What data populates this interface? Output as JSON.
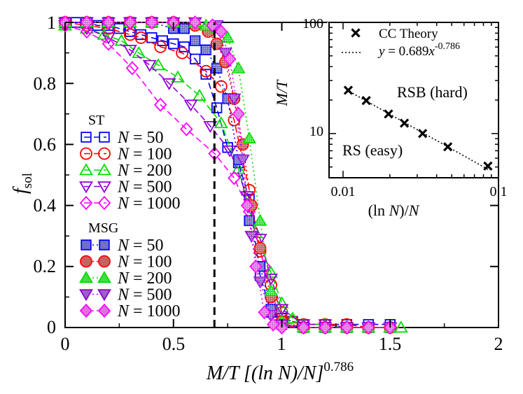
{
  "colors": {
    "N50": "#0000ff",
    "N100": "#ff0000",
    "N200": "#00dd00",
    "N500": "#9400d3",
    "N1000": "#ff00ff",
    "N50_msg_fill": "#7070c8",
    "N100_msg_fill": "#c86262",
    "N200_msg_fill": "#44dd44",
    "N500_msg_fill": "#9a60c8",
    "N1000_msg_fill": "#e070e0",
    "axis": "#000000",
    "threshold": "#000000"
  },
  "chart_data": [
    {
      "type": "line",
      "title": "",
      "xlabel_parts": {
        "base": "M/T [(ln N)/N]",
        "sup": "0.786"
      },
      "ylabel_parts": {
        "base": "f",
        "sub": "sol"
      },
      "xlim": [
        0,
        2
      ],
      "ylim": [
        0,
        1
      ],
      "x_ticks": [
        "0",
        "0.5",
        "1",
        "1.5",
        "2"
      ],
      "y_ticks": [
        "0",
        "0.2",
        "0.4",
        "0.6",
        "0.8",
        "1"
      ],
      "threshold_x": 0.689,
      "legend": {
        "position": "left",
        "groups": [
          {
            "title": "ST",
            "entries": [
              {
                "key": "N50",
                "label": "N = 50",
                "marker": "square",
                "filled": false
              },
              {
                "key": "N100",
                "label": "N = 100",
                "marker": "circle",
                "filled": false
              },
              {
                "key": "N200",
                "label": "N = 200",
                "marker": "triangle-up",
                "filled": false
              },
              {
                "key": "N500",
                "label": "N = 500",
                "marker": "triangle-down",
                "filled": false
              },
              {
                "key": "N1000",
                "label": "N = 1000",
                "marker": "diamond",
                "filled": false
              }
            ]
          },
          {
            "title": "MSG",
            "entries": [
              {
                "key": "N50",
                "label": "N = 50",
                "marker": "square",
                "filled": true
              },
              {
                "key": "N100",
                "label": "N = 100",
                "marker": "circle",
                "filled": true
              },
              {
                "key": "N200",
                "label": "N = 200",
                "marker": "triangle-up",
                "filled": true
              },
              {
                "key": "N500",
                "label": "N = 500",
                "marker": "triangle-down",
                "filled": true
              },
              {
                "key": "N1000",
                "label": "N = 1000",
                "marker": "diamond",
                "filled": true
              }
            ]
          }
        ]
      },
      "series": [
        {
          "name": "ST N = 50",
          "method": "ST",
          "key": "N50",
          "marker": "square",
          "filled": false,
          "dash": "9,5",
          "x": [
            0.0,
            0.05,
            0.1,
            0.15,
            0.2,
            0.25,
            0.3,
            0.35,
            0.4,
            0.45,
            0.5,
            0.55,
            0.6,
            0.65,
            0.7,
            0.75,
            0.8,
            0.85,
            0.9,
            0.95,
            1.0,
            1.05,
            1.1,
            1.2,
            1.3,
            1.4,
            1.5
          ],
          "y": [
            1.0,
            1.0,
            1.0,
            0.99,
            0.99,
            0.98,
            0.97,
            0.96,
            0.95,
            0.94,
            0.93,
            0.92,
            0.88,
            0.83,
            0.72,
            0.59,
            0.54,
            0.42,
            0.17,
            0.05,
            0.03,
            0.02,
            0.01,
            0.01,
            0.01,
            0.01,
            0.01
          ]
        },
        {
          "name": "ST N = 100",
          "method": "ST",
          "key": "N100",
          "marker": "circle",
          "filled": false,
          "dash": "9,5",
          "x": [
            0.0,
            0.1,
            0.2,
            0.3,
            0.35,
            0.44,
            0.54,
            0.65,
            0.72,
            0.78,
            0.85,
            0.9,
            0.95,
            1.0,
            1.05,
            1.1,
            1.2,
            1.3,
            1.4,
            1.5
          ],
          "y": [
            1.0,
            0.99,
            0.98,
            0.96,
            0.95,
            0.92,
            0.9,
            0.84,
            0.79,
            0.68,
            0.45,
            0.25,
            0.14,
            0.05,
            0.02,
            0.01,
            0.01,
            0.01,
            0.0,
            0.0
          ]
        },
        {
          "name": "ST N = 200",
          "method": "ST",
          "key": "N200",
          "marker": "triangle-up",
          "filled": false,
          "dash": "9,5",
          "x": [
            0.0,
            0.1,
            0.18,
            0.26,
            0.34,
            0.43,
            0.52,
            0.62,
            0.72,
            0.8,
            0.88,
            0.95,
            1.0,
            1.05,
            1.1,
            1.2,
            1.3,
            1.4,
            1.5,
            1.55
          ],
          "y": [
            0.99,
            0.98,
            0.96,
            0.94,
            0.9,
            0.86,
            0.82,
            0.76,
            0.67,
            0.52,
            0.31,
            0.18,
            0.08,
            0.03,
            0.01,
            0.01,
            0.0,
            0.0,
            0.0,
            0.0
          ]
        },
        {
          "name": "ST N = 500",
          "method": "ST",
          "key": "N500",
          "marker": "triangle-down",
          "filled": false,
          "dash": "9,5",
          "x": [
            0.0,
            0.1,
            0.2,
            0.3,
            0.39,
            0.48,
            0.58,
            0.67,
            0.76,
            0.84,
            0.9,
            0.95,
            1.0,
            1.1,
            1.2,
            1.3,
            1.4,
            1.5
          ],
          "y": [
            0.99,
            0.98,
            0.95,
            0.91,
            0.86,
            0.8,
            0.73,
            0.66,
            0.58,
            0.43,
            0.29,
            0.16,
            0.06,
            0.01,
            0.01,
            0.0,
            0.0,
            0.0
          ]
        },
        {
          "name": "ST N = 1000",
          "method": "ST",
          "key": "N1000",
          "marker": "diamond",
          "filled": false,
          "dash": "9,5",
          "x": [
            0.0,
            0.1,
            0.2,
            0.31,
            0.44,
            0.56,
            0.69,
            0.78,
            0.85,
            0.92,
            1.0,
            1.1,
            1.2,
            1.3,
            1.4,
            1.5
          ],
          "y": [
            0.99,
            0.97,
            0.93,
            0.85,
            0.73,
            0.65,
            0.57,
            0.49,
            0.38,
            0.2,
            0.01,
            0.0,
            0.0,
            0.0,
            0.0,
            0.0
          ]
        },
        {
          "name": "MSG N = 50",
          "method": "MSG",
          "key": "N50",
          "marker": "square",
          "filled": true,
          "dash": "2,4",
          "x": [
            0.0,
            0.1,
            0.2,
            0.3,
            0.4,
            0.5,
            0.55,
            0.6,
            0.65,
            0.7,
            0.75,
            0.8,
            0.85,
            0.9,
            0.95,
            1.0,
            1.1,
            1.2,
            1.3,
            1.4,
            1.5
          ],
          "y": [
            1.0,
            1.0,
            1.0,
            1.0,
            1.0,
            0.98,
            0.98,
            0.94,
            0.91,
            0.85,
            0.75,
            0.55,
            0.35,
            0.2,
            0.06,
            0.01,
            0.0,
            0.0,
            0.0,
            0.0,
            0.0
          ]
        },
        {
          "name": "MSG N = 100",
          "method": "MSG",
          "key": "N100",
          "marker": "circle",
          "filled": true,
          "dash": "2,4",
          "x": [
            0.0,
            0.1,
            0.2,
            0.3,
            0.4,
            0.5,
            0.6,
            0.66,
            0.7,
            0.74,
            0.78,
            0.82,
            0.86,
            0.9,
            0.95,
            1.0,
            1.1,
            1.2,
            1.3,
            1.4,
            1.5
          ],
          "y": [
            1.0,
            1.0,
            1.0,
            1.0,
            1.0,
            1.0,
            0.99,
            0.97,
            0.93,
            0.87,
            0.75,
            0.6,
            0.4,
            0.26,
            0.1,
            0.02,
            0.0,
            0.0,
            0.0,
            0.0,
            0.0
          ]
        },
        {
          "name": "MSG N = 200",
          "method": "MSG",
          "key": "N200",
          "marker": "triangle-up",
          "filled": true,
          "dash": "2,4",
          "x": [
            0.0,
            0.1,
            0.2,
            0.3,
            0.4,
            0.5,
            0.6,
            0.65,
            0.7,
            0.75,
            0.8,
            0.85,
            0.9,
            0.95,
            1.0,
            1.1,
            1.2,
            1.3,
            1.4,
            1.5
          ],
          "y": [
            1.0,
            1.0,
            1.0,
            1.0,
            1.0,
            1.0,
            1.0,
            0.99,
            0.98,
            0.95,
            0.85,
            0.62,
            0.35,
            0.12,
            0.02,
            0.0,
            0.0,
            0.0,
            0.0,
            0.0
          ]
        },
        {
          "name": "MSG N = 500",
          "method": "MSG",
          "key": "N500",
          "marker": "triangle-down",
          "filled": true,
          "dash": "2,4",
          "x": [
            0.0,
            0.1,
            0.2,
            0.3,
            0.4,
            0.5,
            0.6,
            0.7,
            0.74,
            0.78,
            0.82,
            0.86,
            0.9,
            0.95,
            1.0,
            1.1,
            1.2,
            1.3,
            1.4,
            1.5
          ],
          "y": [
            1.0,
            1.0,
            1.0,
            1.0,
            1.0,
            1.0,
            1.0,
            0.99,
            0.9,
            0.75,
            0.55,
            0.3,
            0.15,
            0.04,
            0.01,
            0.0,
            0.0,
            0.0,
            0.0,
            0.0
          ]
        },
        {
          "name": "MSG N = 1000",
          "method": "MSG",
          "key": "N1000",
          "marker": "diamond",
          "filled": true,
          "dash": "2,4",
          "x": [
            0.0,
            0.1,
            0.2,
            0.3,
            0.4,
            0.5,
            0.6,
            0.68,
            0.72,
            0.76,
            0.8,
            0.84,
            0.88,
            0.92,
            0.96,
            1.0,
            1.1,
            1.2,
            1.3,
            1.4,
            1.5
          ],
          "y": [
            1.0,
            1.0,
            1.0,
            1.0,
            1.0,
            1.0,
            1.0,
            0.99,
            0.97,
            0.88,
            0.7,
            0.4,
            0.2,
            0.05,
            0.01,
            0.0,
            0.0,
            0.0,
            0.0,
            0.0,
            0.0
          ]
        }
      ]
    },
    {
      "type": "scatter",
      "title": "",
      "scale": "log-log",
      "xlabel_parts": {
        "pre": "(ln ",
        "var": "N",
        "post": ")/",
        "var2": "N"
      },
      "ylabel": "M/T",
      "xlim": [
        0.01,
        0.1
      ],
      "ylim": [
        4,
        100
      ],
      "x_ticks": [
        {
          "value": 0.01,
          "label": "0.01"
        },
        {
          "value": 0.1,
          "label": "0.1"
        }
      ],
      "y_ticks": [
        {
          "value": 10,
          "label": "10"
        },
        {
          "value": 100,
          "label": "100"
        }
      ],
      "legend_entries": [
        {
          "key": "theory",
          "label": "CC Theory"
        },
        {
          "key": "fit",
          "label_parts": {
            "lhs": "y",
            "eq": " = 0.689",
            "var": "x",
            "sup": "-0.786"
          }
        }
      ],
      "annotations": [
        {
          "key": "rsb",
          "text": "RSB (hard)"
        },
        {
          "key": "rs",
          "text": "RS (easy)"
        }
      ],
      "fit": {
        "coef": 0.689,
        "exponent": -0.786
      },
      "series": [
        {
          "name": "CC Theory",
          "marker": "x",
          "x": [
            0.0108,
            0.0141,
            0.0196,
            0.0248,
            0.0325,
            0.0472,
            0.0855
          ],
          "y": [
            24.5,
            19.8,
            15.0,
            12.4,
            10.0,
            7.6,
            5.1
          ]
        }
      ]
    }
  ]
}
